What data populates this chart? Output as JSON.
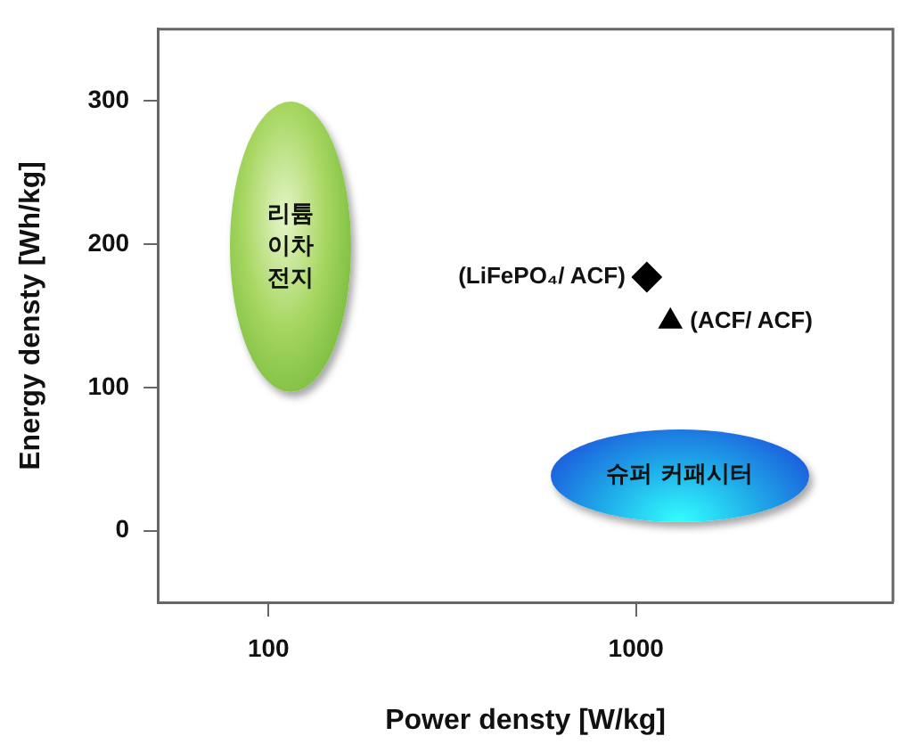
{
  "chart_data": {
    "type": "scatter",
    "xlabel": "Power densty [W/kg]",
    "ylabel": "Energy densty [Wh/kg]",
    "log": "x",
    "xlim": [
      50,
      5000
    ],
    "xticks": [
      100,
      1000
    ],
    "ylim": [
      -50,
      350
    ],
    "yticks": [
      0,
      100,
      200,
      300
    ],
    "grid": false,
    "legend": false,
    "series": [
      {
        "name": "(LiFePO₄/ ACF)",
        "color": "#000000",
        "marker": "diamond",
        "x": [
          1070
        ],
        "values": [
          177
        ]
      },
      {
        "name": "(ACF/ ACF)",
        "color": "#000000",
        "marker": "triangle",
        "x": [
          1240
        ],
        "values": [
          146
        ]
      }
    ],
    "annotations": [
      "리튬 이차 전지",
      "슈퍼 커패시터"
    ]
  }
}
